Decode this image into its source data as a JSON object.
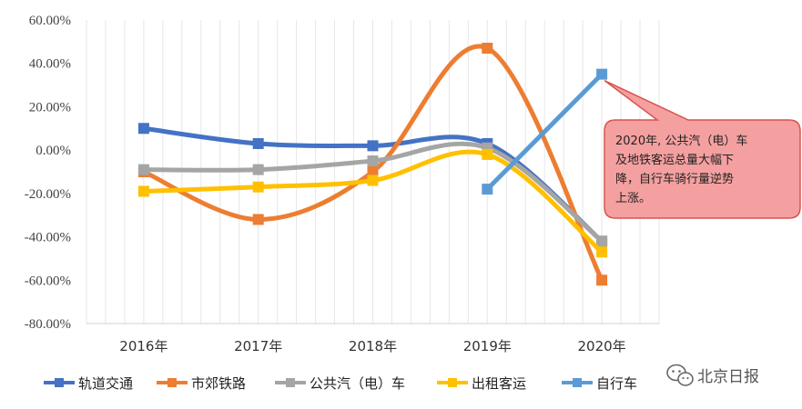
{
  "chart_data": {
    "type": "line",
    "categories": [
      "2016年",
      "2017年",
      "2018年",
      "2019年",
      "2020年"
    ],
    "y_ticks": [
      "60.00%",
      "40.00%",
      "20.00%",
      "0.00%",
      "-20.00%",
      "-40.00%",
      "-60.00%",
      "-80.00%"
    ],
    "ylim": [
      -80,
      60
    ],
    "y_unit": "%",
    "grid": "vertical-gridlines",
    "legend_position": "bottom",
    "series": [
      {
        "name": "轨道交通",
        "color": "#4472C4",
        "values": [
          10,
          3,
          2,
          3,
          -42
        ]
      },
      {
        "name": "市郊铁路",
        "color": "#ED7D31",
        "values": [
          -10,
          -32,
          -10,
          47,
          -60
        ]
      },
      {
        "name": "公共汽（电）车",
        "color": "#A5A5A5",
        "values": [
          -9,
          -9,
          -5,
          1,
          -42
        ]
      },
      {
        "name": "出租客运",
        "color": "#FFC000",
        "values": [
          -19,
          -17,
          -14,
          -2,
          -47
        ]
      },
      {
        "name": "自行车",
        "color": "#5B9BD5",
        "values": [
          null,
          null,
          null,
          -18,
          35
        ]
      }
    ],
    "annotation": {
      "lines": [
        "2020年, 公共汽（电）车",
        "及地铁客运总量大幅下",
        "降，自行车骑行量逆势",
        "上涨。"
      ],
      "fill": "#F4A0A0",
      "stroke": "#D9534F",
      "target_series": "自行车",
      "target_category": "2020年"
    }
  },
  "watermark": {
    "text": "北京日报",
    "icon": "wechat-icon"
  }
}
